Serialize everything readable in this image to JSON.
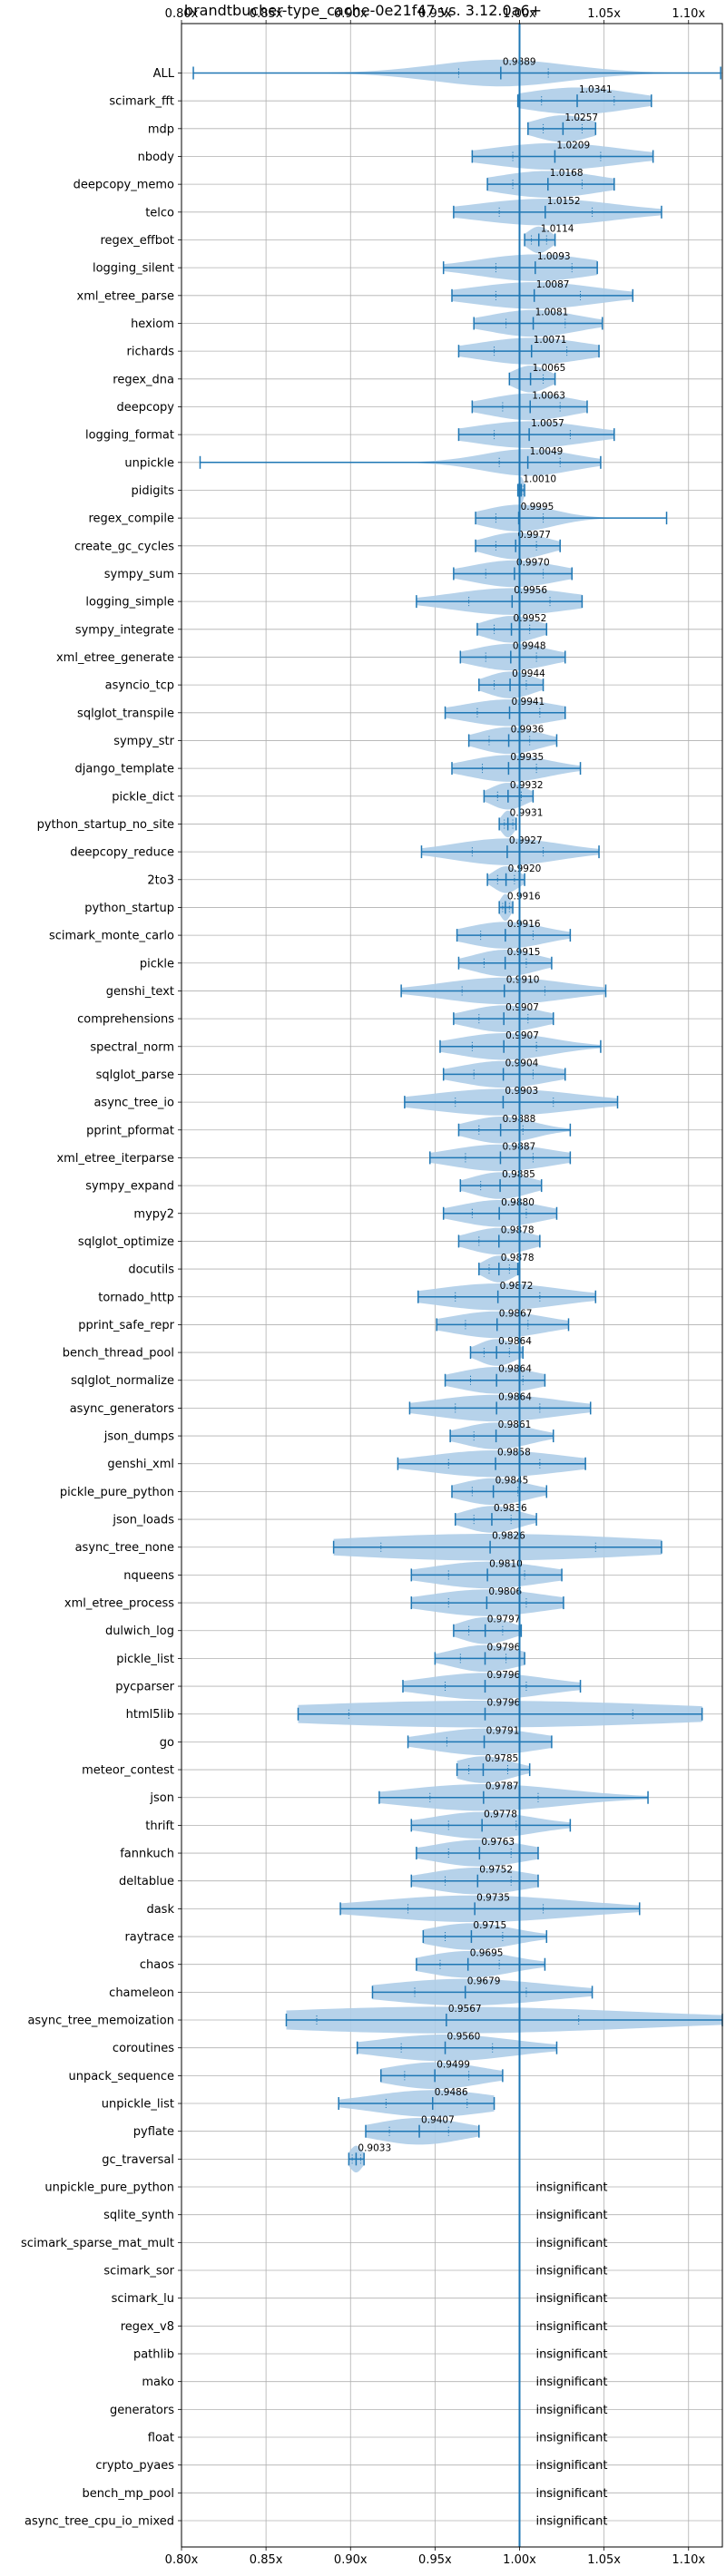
{
  "chart_data": {
    "type": "violin",
    "title": "brandtbucher-type_cache-0e21f47 vs. 3.12.0a6+",
    "xlim": [
      0.8,
      1.12
    ],
    "xticks": [
      0.8,
      0.85,
      0.9,
      0.95,
      1.0,
      1.05,
      1.1
    ],
    "xtick_labels": [
      "0.80x",
      "0.85x",
      "0.90x",
      "0.95x",
      "1.00x",
      "1.05x",
      "1.10x"
    ],
    "reference_line": 1.0,
    "grid": true,
    "colors": {
      "violin": "#aecde8",
      "line": "#1f77b4",
      "grid": "#b0b0b0"
    },
    "benchmarks": [
      {
        "name": "ALL",
        "mean": 0.9889,
        "label": "0.9889",
        "min": 0.807,
        "max": 1.119,
        "q1": 0.964,
        "q3": 1.017
      },
      {
        "name": "scimark_fft",
        "mean": 1.0341,
        "label": "1.0341",
        "min": 0.999,
        "max": 1.078,
        "q1": 1.013,
        "q3": 1.056
      },
      {
        "name": "mdp",
        "mean": 1.0257,
        "label": "1.0257",
        "min": 1.005,
        "max": 1.045,
        "q1": 1.014,
        "q3": 1.037
      },
      {
        "name": "nbody",
        "mean": 1.0209,
        "label": "1.0209",
        "min": 0.972,
        "max": 1.079,
        "q1": 0.996,
        "q3": 1.048
      },
      {
        "name": "deepcopy_memo",
        "mean": 1.0168,
        "label": "1.0168",
        "min": 0.981,
        "max": 1.056,
        "q1": 0.996,
        "q3": 1.037
      },
      {
        "name": "telco",
        "mean": 1.0152,
        "label": "1.0152",
        "min": 0.961,
        "max": 1.084,
        "q1": 0.988,
        "q3": 1.043
      },
      {
        "name": "regex_effbot",
        "mean": 1.0114,
        "label": "1.0114",
        "min": 1.003,
        "max": 1.021,
        "q1": 1.007,
        "q3": 1.016
      },
      {
        "name": "logging_silent",
        "mean": 1.0093,
        "label": "1.0093",
        "min": 0.955,
        "max": 1.046,
        "q1": 0.986,
        "q3": 1.031
      },
      {
        "name": "xml_etree_parse",
        "mean": 1.0087,
        "label": "1.0087",
        "min": 0.96,
        "max": 1.067,
        "q1": 0.986,
        "q3": 1.036
      },
      {
        "name": "hexiom",
        "mean": 1.0081,
        "label": "1.0081",
        "min": 0.973,
        "max": 1.049,
        "q1": 0.992,
        "q3": 1.027
      },
      {
        "name": "richards",
        "mean": 1.0071,
        "label": "1.0071",
        "min": 0.964,
        "max": 1.047,
        "q1": 0.985,
        "q3": 1.028
      },
      {
        "name": "regex_dna",
        "mean": 1.0065,
        "label": "1.0065",
        "min": 0.994,
        "max": 1.021,
        "q1": 1.0,
        "q3": 1.014
      },
      {
        "name": "deepcopy",
        "mean": 1.0063,
        "label": "1.0063",
        "min": 0.972,
        "max": 1.04,
        "q1": 0.99,
        "q3": 1.024
      },
      {
        "name": "logging_format",
        "mean": 1.0057,
        "label": "1.0057",
        "min": 0.964,
        "max": 1.056,
        "q1": 0.985,
        "q3": 1.03
      },
      {
        "name": "unpickle",
        "mean": 1.0049,
        "label": "1.0049",
        "min": 0.811,
        "max": 1.048,
        "q1": 0.988,
        "q3": 1.024
      },
      {
        "name": "pidigits",
        "mean": 1.001,
        "label": "1.0010",
        "min": 0.999,
        "max": 1.003,
        "q1": 1.0,
        "q3": 1.002
      },
      {
        "name": "regex_compile",
        "mean": 0.9995,
        "label": "0.9995",
        "min": 0.974,
        "max": 1.087,
        "q1": 0.986,
        "q3": 1.014
      },
      {
        "name": "create_gc_cycles",
        "mean": 0.9977,
        "label": "0.9977",
        "min": 0.974,
        "max": 1.024,
        "q1": 0.986,
        "q3": 1.01
      },
      {
        "name": "sympy_sum",
        "mean": 0.997,
        "label": "0.9970",
        "min": 0.961,
        "max": 1.031,
        "q1": 0.98,
        "q3": 1.014
      },
      {
        "name": "logging_simple",
        "mean": 0.9956,
        "label": "0.9956",
        "min": 0.939,
        "max": 1.037,
        "q1": 0.97,
        "q3": 1.018
      },
      {
        "name": "sympy_integrate",
        "mean": 0.9952,
        "label": "0.9952",
        "min": 0.975,
        "max": 1.016,
        "q1": 0.985,
        "q3": 1.006
      },
      {
        "name": "xml_etree_generate",
        "mean": 0.9948,
        "label": "0.9948",
        "min": 0.965,
        "max": 1.027,
        "q1": 0.98,
        "q3": 1.01
      },
      {
        "name": "asyncio_tcp",
        "mean": 0.9944,
        "label": "0.9944",
        "min": 0.976,
        "max": 1.014,
        "q1": 0.985,
        "q3": 1.004
      },
      {
        "name": "sqlglot_transpile",
        "mean": 0.9941,
        "label": "0.9941",
        "min": 0.956,
        "max": 1.027,
        "q1": 0.975,
        "q3": 1.012
      },
      {
        "name": "sympy_str",
        "mean": 0.9936,
        "label": "0.9936",
        "min": 0.97,
        "max": 1.022,
        "q1": 0.982,
        "q3": 1.006
      },
      {
        "name": "django_template",
        "mean": 0.9935,
        "label": "0.9935",
        "min": 0.96,
        "max": 1.036,
        "q1": 0.978,
        "q3": 1.01
      },
      {
        "name": "pickle_dict",
        "mean": 0.9932,
        "label": "0.9932",
        "min": 0.979,
        "max": 1.008,
        "q1": 0.987,
        "q3": 1.001
      },
      {
        "name": "python_startup_no_site",
        "mean": 0.9931,
        "label": "0.9931",
        "min": 0.988,
        "max": 0.998,
        "q1": 0.991,
        "q3": 0.996
      },
      {
        "name": "deepcopy_reduce",
        "mean": 0.9927,
        "label": "0.9927",
        "min": 0.942,
        "max": 1.047,
        "q1": 0.972,
        "q3": 1.014
      },
      {
        "name": "2to3",
        "mean": 0.992,
        "label": "0.9920",
        "min": 0.981,
        "max": 1.003,
        "q1": 0.987,
        "q3": 0.997
      },
      {
        "name": "python_startup",
        "mean": 0.9916,
        "label": "0.9916",
        "min": 0.988,
        "max": 0.996,
        "q1": 0.99,
        "q3": 0.994
      },
      {
        "name": "scimark_monte_carlo",
        "mean": 0.9916,
        "label": "0.9916",
        "min": 0.963,
        "max": 1.03,
        "q1": 0.977,
        "q3": 1.008
      },
      {
        "name": "pickle",
        "mean": 0.9915,
        "label": "0.9915",
        "min": 0.964,
        "max": 1.019,
        "q1": 0.979,
        "q3": 1.004
      },
      {
        "name": "genshi_text",
        "mean": 0.991,
        "label": "0.9910",
        "min": 0.93,
        "max": 1.051,
        "q1": 0.966,
        "q3": 1.015
      },
      {
        "name": "comprehensions",
        "mean": 0.9907,
        "label": "0.9907",
        "min": 0.961,
        "max": 1.02,
        "q1": 0.976,
        "q3": 1.005
      },
      {
        "name": "spectral_norm",
        "mean": 0.9907,
        "label": "0.9907",
        "min": 0.953,
        "max": 1.048,
        "q1": 0.972,
        "q3": 1.01
      },
      {
        "name": "sqlglot_parse",
        "mean": 0.9904,
        "label": "0.9904",
        "min": 0.955,
        "max": 1.027,
        "q1": 0.973,
        "q3": 1.008
      },
      {
        "name": "async_tree_io",
        "mean": 0.9903,
        "label": "0.9903",
        "min": 0.932,
        "max": 1.058,
        "q1": 0.962,
        "q3": 1.02
      },
      {
        "name": "pprint_pformat",
        "mean": 0.9888,
        "label": "0.9888",
        "min": 0.964,
        "max": 1.03,
        "q1": 0.976,
        "q3": 1.002
      },
      {
        "name": "xml_etree_iterparse",
        "mean": 0.9887,
        "label": "0.9887",
        "min": 0.947,
        "max": 1.03,
        "q1": 0.968,
        "q3": 1.008
      },
      {
        "name": "sympy_expand",
        "mean": 0.9885,
        "label": "0.9885",
        "min": 0.965,
        "max": 1.013,
        "q1": 0.977,
        "q3": 1.0
      },
      {
        "name": "mypy2",
        "mean": 0.988,
        "label": "0.9880",
        "min": 0.955,
        "max": 1.022,
        "q1": 0.972,
        "q3": 1.004
      },
      {
        "name": "sqlglot_optimize",
        "mean": 0.9878,
        "label": "0.9878",
        "min": 0.964,
        "max": 1.012,
        "q1": 0.976,
        "q3": 1.0
      },
      {
        "name": "docutils",
        "mean": 0.9878,
        "label": "0.9878",
        "min": 0.976,
        "max": 0.999,
        "q1": 0.982,
        "q3": 0.994
      },
      {
        "name": "tornado_http",
        "mean": 0.9872,
        "label": "0.9872",
        "min": 0.94,
        "max": 1.045,
        "q1": 0.962,
        "q3": 1.012
      },
      {
        "name": "pprint_safe_repr",
        "mean": 0.9867,
        "label": "0.9867",
        "min": 0.951,
        "max": 1.029,
        "q1": 0.968,
        "q3": 1.005
      },
      {
        "name": "bench_thread_pool",
        "mean": 0.9864,
        "label": "0.9864",
        "min": 0.971,
        "max": 1.002,
        "q1": 0.979,
        "q3": 0.994
      },
      {
        "name": "sqlglot_normalize",
        "mean": 0.9864,
        "label": "0.9864",
        "min": 0.956,
        "max": 1.015,
        "q1": 0.971,
        "q3": 1.002
      },
      {
        "name": "async_generators",
        "mean": 0.9864,
        "label": "0.9864",
        "min": 0.935,
        "max": 1.042,
        "q1": 0.962,
        "q3": 1.012
      },
      {
        "name": "json_dumps",
        "mean": 0.9861,
        "label": "0.9861",
        "min": 0.959,
        "max": 1.02,
        "q1": 0.973,
        "q3": 1.0
      },
      {
        "name": "genshi_xml",
        "mean": 0.9858,
        "label": "0.9858",
        "min": 0.928,
        "max": 1.039,
        "q1": 0.958,
        "q3": 1.012
      },
      {
        "name": "pickle_pure_python",
        "mean": 0.9845,
        "label": "0.9845",
        "min": 0.96,
        "max": 1.016,
        "q1": 0.972,
        "q3": 0.999
      },
      {
        "name": "json_loads",
        "mean": 0.9836,
        "label": "0.9836",
        "min": 0.962,
        "max": 1.01,
        "q1": 0.973,
        "q3": 0.995
      },
      {
        "name": "async_tree_none",
        "mean": 0.9826,
        "label": "0.9826",
        "min": 0.89,
        "max": 1.084,
        "q1": 0.918,
        "q3": 1.045
      },
      {
        "name": "nqueens",
        "mean": 0.981,
        "label": "0.9810",
        "min": 0.936,
        "max": 1.025,
        "q1": 0.958,
        "q3": 1.003
      },
      {
        "name": "xml_etree_process",
        "mean": 0.9806,
        "label": "0.9806",
        "min": 0.936,
        "max": 1.026,
        "q1": 0.958,
        "q3": 1.004
      },
      {
        "name": "dulwich_log",
        "mean": 0.9797,
        "label": "0.9797",
        "min": 0.961,
        "max": 1.001,
        "q1": 0.97,
        "q3": 0.99
      },
      {
        "name": "pickle_list",
        "mean": 0.9796,
        "label": "0.9796",
        "min": 0.95,
        "max": 1.003,
        "q1": 0.965,
        "q3": 0.992
      },
      {
        "name": "pycparser",
        "mean": 0.9796,
        "label": "0.9796",
        "min": 0.931,
        "max": 1.036,
        "q1": 0.956,
        "q3": 1.004
      },
      {
        "name": "html5lib",
        "mean": 0.9796,
        "label": "0.9796",
        "min": 0.869,
        "max": 1.108,
        "q1": 0.899,
        "q3": 1.067
      },
      {
        "name": "go",
        "mean": 0.9791,
        "label": "0.9791",
        "min": 0.934,
        "max": 1.019,
        "q1": 0.957,
        "q3": 1.0
      },
      {
        "name": "meteor_contest",
        "mean": 0.9785,
        "label": "0.9785",
        "min": 0.963,
        "max": 1.006,
        "q1": 0.97,
        "q3": 0.993
      },
      {
        "name": "json",
        "mean": 0.9787,
        "label": "0.9787",
        "min": 0.917,
        "max": 1.076,
        "q1": 0.947,
        "q3": 1.011
      },
      {
        "name": "thrift",
        "mean": 0.9778,
        "label": "0.9778",
        "min": 0.936,
        "max": 1.03,
        "q1": 0.958,
        "q3": 0.998
      },
      {
        "name": "fannkuch",
        "mean": 0.9763,
        "label": "0.9763",
        "min": 0.939,
        "max": 1.011,
        "q1": 0.958,
        "q3": 0.995
      },
      {
        "name": "deltablue",
        "mean": 0.9752,
        "label": "0.9752",
        "min": 0.936,
        "max": 1.011,
        "q1": 0.956,
        "q3": 0.995
      },
      {
        "name": "dask",
        "mean": 0.9735,
        "label": "0.9735",
        "min": 0.894,
        "max": 1.071,
        "q1": 0.934,
        "q3": 1.014
      },
      {
        "name": "raytrace",
        "mean": 0.9715,
        "label": "0.9715",
        "min": 0.943,
        "max": 1.016,
        "q1": 0.956,
        "q3": 0.99
      },
      {
        "name": "chaos",
        "mean": 0.9695,
        "label": "0.9695",
        "min": 0.939,
        "max": 1.015,
        "q1": 0.953,
        "q3": 0.988
      },
      {
        "name": "chameleon",
        "mean": 0.9679,
        "label": "0.9679",
        "min": 0.913,
        "max": 1.043,
        "q1": 0.938,
        "q3": 1.004
      },
      {
        "name": "async_tree_memoization",
        "mean": 0.9567,
        "label": "0.9567",
        "min": 0.862,
        "max": 1.12,
        "q1": 0.88,
        "q3": 1.035
      },
      {
        "name": "coroutines",
        "mean": 0.956,
        "label": "0.9560",
        "min": 0.904,
        "max": 1.022,
        "q1": 0.93,
        "q3": 0.984
      },
      {
        "name": "unpack_sequence",
        "mean": 0.9499,
        "label": "0.9499",
        "min": 0.918,
        "max": 0.99,
        "q1": 0.932,
        "q3": 0.97
      },
      {
        "name": "unpickle_list",
        "mean": 0.9486,
        "label": "0.9486",
        "min": 0.893,
        "max": 0.985,
        "q1": 0.921,
        "q3": 0.969
      },
      {
        "name": "pyflate",
        "mean": 0.9407,
        "label": "0.9407",
        "min": 0.909,
        "max": 0.976,
        "q1": 0.923,
        "q3": 0.958
      },
      {
        "name": "gc_traversal",
        "mean": 0.9033,
        "label": "0.9033",
        "min": 0.899,
        "max": 0.908,
        "q1": 0.901,
        "q3": 0.906
      }
    ],
    "insignificant_label": "insignificant",
    "insignificant": [
      "unpickle_pure_python",
      "sqlite_synth",
      "scimark_sparse_mat_mult",
      "scimark_sor",
      "scimark_lu",
      "regex_v8",
      "pathlib",
      "mako",
      "generators",
      "float",
      "crypto_pyaes",
      "bench_mp_pool",
      "async_tree_cpu_io_mixed"
    ]
  }
}
